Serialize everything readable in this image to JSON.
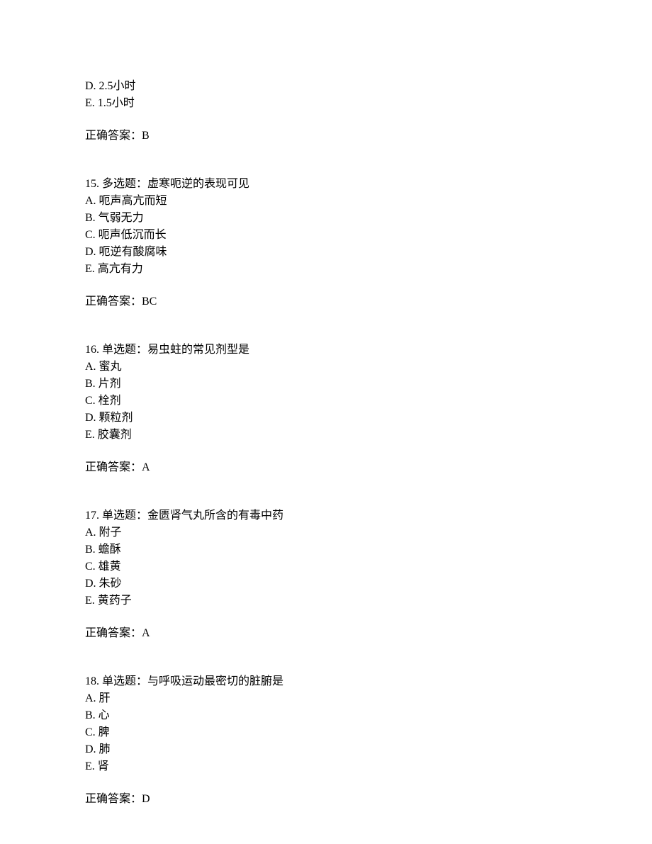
{
  "q14_remaining": {
    "options": [
      "D. 2.5小时",
      "E. 1.5小时"
    ],
    "answer": "正确答案：B"
  },
  "q15": {
    "title": "15.  多选题：虚寒呃逆的表现可见",
    "options": [
      "A. 呃声高亢而短",
      "B. 气弱无力",
      "C. 呃声低沉而长",
      "D. 呃逆有酸腐味",
      "E. 高亢有力"
    ],
    "answer": "正确答案：BC"
  },
  "q16": {
    "title": "16.  单选题：易虫蛀的常见剂型是",
    "options": [
      "A. 蜜丸",
      "B. 片剂",
      "C. 栓剂",
      "D. 颗粒剂",
      "E. 胶囊剂"
    ],
    "answer": "正确答案：A"
  },
  "q17": {
    "title": "17.  单选题：金匮肾气丸所含的有毒中药",
    "options": [
      "A. 附子",
      "B. 蟾酥",
      "C. 雄黄",
      "D. 朱砂",
      "E. 黄药子"
    ],
    "answer": "正确答案：A"
  },
  "q18": {
    "title": "18.  单选题：与呼吸运动最密切的脏腑是",
    "options": [
      "A. 肝",
      "B. 心",
      "C. 脾",
      "D. 肺",
      "E. 肾"
    ],
    "answer": "正确答案：D"
  }
}
